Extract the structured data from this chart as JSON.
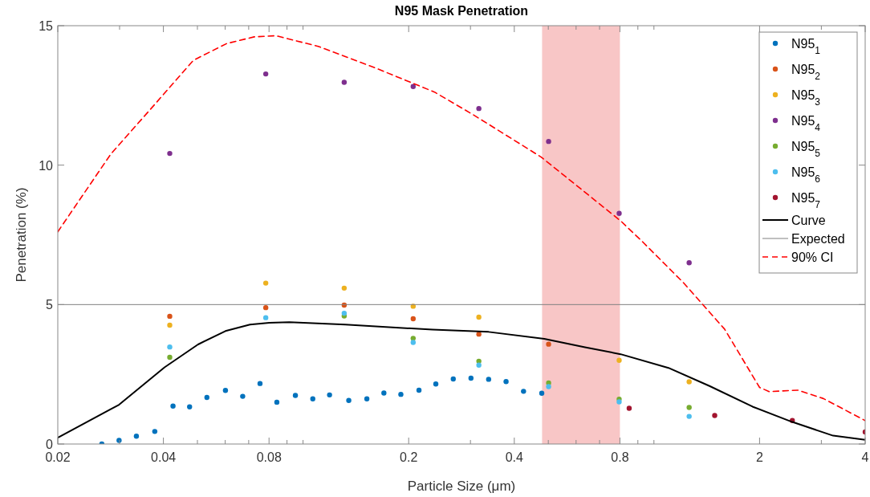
{
  "chart_data": {
    "type": "scatter",
    "title": "N95 Mask Penetration",
    "xlabel": "Particle Size (μm)",
    "ylabel": "Penetration (%)",
    "log": "x",
    "xlim": [
      0.02,
      4
    ],
    "ylim": [
      0,
      15
    ],
    "xticks": [
      0.02,
      {
        "value": 0.03,
        "label": null
      },
      0.04,
      {
        "value": 0.05,
        "label": null
      },
      {
        "value": 0.06,
        "label": null
      },
      {
        "value": 0.07,
        "label": null
      },
      0.08,
      {
        "value": 0.09,
        "label": null
      },
      {
        "value": 0.1,
        "label": null
      },
      0.2,
      {
        "value": 0.3,
        "label": null
      },
      0.4,
      {
        "value": 0.5,
        "label": null
      },
      {
        "value": 0.6,
        "label": null
      },
      {
        "value": 0.7,
        "label": null
      },
      0.8,
      {
        "value": 0.9,
        "label": null
      },
      {
        "value": 1,
        "label": null
      },
      2,
      {
        "value": 3,
        "label": null
      },
      4
    ],
    "yticks": [
      0,
      5,
      10,
      15
    ],
    "marker": "circle",
    "legend": "top right",
    "grid": false,
    "bands": [
      {
        "axis": "x",
        "from": 0.48,
        "to": 0.8,
        "color": "#f8c6c6"
      }
    ],
    "series": [
      {
        "name": "N95$_{1}$",
        "color": "#0072bd",
        "x": [
          0.0267,
          0.0299,
          0.0335,
          0.0378,
          0.0426,
          0.0475,
          0.0532,
          0.0601,
          0.0673,
          0.0754,
          0.0842,
          0.0951,
          0.1066,
          0.119,
          0.135,
          0.152,
          0.17,
          0.19,
          0.214,
          0.239,
          0.268,
          0.301,
          0.338,
          0.379,
          0.425,
          0.479
        ],
        "values": [
          0,
          0.13,
          0.28,
          0.45,
          1.36,
          1.33,
          1.67,
          1.92,
          1.71,
          2.17,
          1.5,
          1.74,
          1.62,
          1.76,
          1.56,
          1.62,
          1.83,
          1.78,
          1.93,
          2.15,
          2.33,
          2.36,
          2.32,
          2.24,
          1.89,
          1.82
        ]
      },
      {
        "name": "N95$_{2}$",
        "color": "#d95319",
        "x": [
          0.0417,
          0.0783,
          0.131,
          0.206,
          0.317,
          0.501
        ],
        "values": [
          4.58,
          4.89,
          4.98,
          4.49,
          3.94,
          3.58
        ]
      },
      {
        "name": "N95$_{3}$",
        "color": "#edb120",
        "x": [
          0.0417,
          0.0783,
          0.131,
          0.206,
          0.317,
          0.796,
          1.26
        ],
        "values": [
          4.26,
          5.77,
          5.59,
          4.94,
          4.55,
          3.0,
          2.23
        ]
      },
      {
        "name": "N95$_{4}$",
        "color": "#7e2f8e",
        "x": [
          0.0417,
          0.0783,
          0.131,
          0.206,
          0.317,
          0.501,
          0.796,
          1.26
        ],
        "values": [
          10.42,
          13.27,
          12.97,
          12.82,
          12.03,
          10.85,
          8.27,
          6.5
        ]
      },
      {
        "name": "N95$_{5}$",
        "color": "#77ac30",
        "x": [
          0.0417,
          0.131,
          0.206,
          0.317,
          0.501,
          0.796,
          1.26
        ],
        "values": [
          3.11,
          4.59,
          3.79,
          2.97,
          2.19,
          1.61,
          1.31
        ]
      },
      {
        "name": "N95$_{6}$",
        "color": "#4dbeee",
        "x": [
          0.0417,
          0.0783,
          0.131,
          0.206,
          0.317,
          0.501,
          0.796,
          1.26
        ],
        "values": [
          3.48,
          4.53,
          4.69,
          3.64,
          2.83,
          2.06,
          1.51,
          0.99
        ]
      },
      {
        "name": "N95$_{7}$",
        "color": "#a2142f",
        "x": [
          0.85,
          1.49,
          2.48,
          4
        ],
        "values": [
          1.28,
          1.02,
          0.84,
          0.43
        ]
      },
      {
        "name": "Curve",
        "type": "line",
        "marker": "none",
        "color": "#000000",
        "line_style": "solid",
        "x": [
          0.02,
          0.0299,
          0.0403,
          0.0502,
          0.0601,
          0.0706,
          0.0802,
          0.0914,
          0.132,
          0.234,
          0.338,
          0.487,
          0.636,
          0.804,
          1.1,
          1.44,
          1.91,
          2.48,
          3.24,
          4
        ],
        "values": [
          0.23,
          1.41,
          2.75,
          3.57,
          4.05,
          4.28,
          4.35,
          4.37,
          4.28,
          4.1,
          4.02,
          3.77,
          3.47,
          3.22,
          2.73,
          2.08,
          1.34,
          0.79,
          0.3,
          0.15
        ]
      },
      {
        "name": "Expected",
        "type": "line",
        "marker": "none",
        "color": "#808080",
        "line_style": "solid",
        "x": [
          0.02,
          4
        ],
        "values": [
          5,
          5
        ]
      },
      {
        "name": "90% CI",
        "type": "line",
        "marker": "none",
        "color": "#ff0000",
        "line_style": "dashed",
        "x": [
          0.02,
          0.0283,
          0.0378,
          0.0487,
          0.0606,
          0.0726,
          0.0837,
          0.1104,
          0.1589,
          0.237,
          0.308,
          0.477,
          0.804,
          0.93,
          1.21,
          1.59,
          2.0,
          2.13,
          2.57,
          3.04,
          4
        ],
        "values": [
          7.61,
          10.39,
          12.18,
          13.76,
          14.36,
          14.6,
          14.64,
          14.26,
          13.51,
          12.62,
          11.78,
          10.29,
          8.0,
          7.24,
          5.8,
          4.12,
          2.03,
          1.88,
          1.93,
          1.63,
          0.84
        ]
      }
    ]
  }
}
